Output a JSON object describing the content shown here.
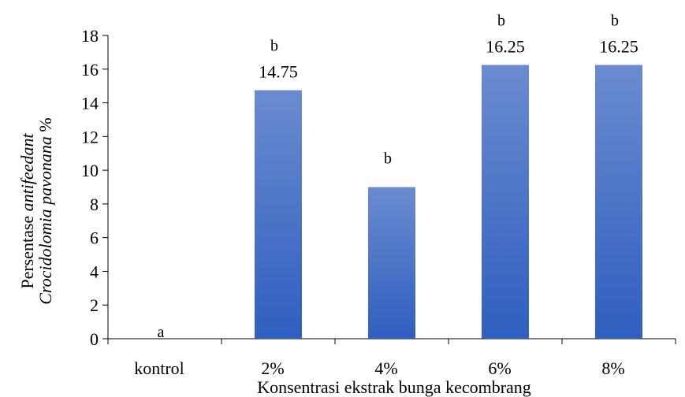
{
  "chart_data": {
    "type": "bar",
    "categories": [
      "kontrol",
      "2%",
      "4%",
      "6%",
      "8%"
    ],
    "values": [
      0,
      14.75,
      9,
      16.25,
      16.25
    ],
    "value_labels": [
      "",
      "14.75",
      "",
      "16.25",
      "16.25"
    ],
    "group_letters": [
      "a",
      "b",
      "b",
      "b",
      "b"
    ],
    "xlabel": "Konsentrasi ekstrak bunga kecombrang",
    "ylabel": {
      "part1": "Persentase ",
      "part2_italic": "antifeedant",
      "part3_italic": "Crocidolomia pavonana",
      "part4": " %"
    },
    "ylim": [
      0,
      18
    ],
    "yticks": [
      0,
      2,
      4,
      6,
      8,
      10,
      12,
      14,
      16,
      18
    ],
    "grid": false,
    "legend": "none",
    "colors": {
      "bar_top": "#6a8bd0",
      "bar_bottom": "#2f5fbf",
      "axis": "#000000"
    }
  }
}
